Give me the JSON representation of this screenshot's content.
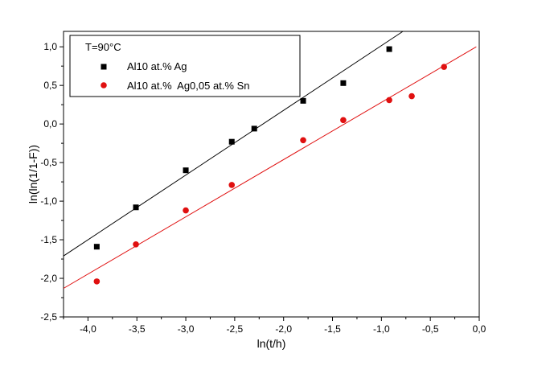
{
  "chart_data": {
    "type": "scatter",
    "title": "",
    "xlabel": "ln(t/h)",
    "ylabel": "ln(ln(1/1-F))",
    "xlim": [
      -4.25,
      0.0
    ],
    "ylim": [
      -2.5,
      1.2
    ],
    "x_ticks": [
      -4.0,
      -3.5,
      -3.0,
      -2.5,
      -2.0,
      -1.5,
      -1.0,
      -0.5,
      0.0
    ],
    "x_tick_labels": [
      "-4,0",
      "-3,5",
      "-3,0",
      "-2,5",
      "-2,0",
      "-1,5",
      "-1,0",
      "-0,5",
      "0,0"
    ],
    "y_ticks": [
      -2.5,
      -2.0,
      -1.5,
      -1.0,
      -0.5,
      0.0,
      0.5,
      1.0
    ],
    "y_tick_labels": [
      "-2,5",
      "-2,0",
      "-1,5",
      "-1,0",
      "-0,5",
      "0,0",
      "0,5",
      "1,0"
    ],
    "legend_title": "T=90°C",
    "legend_position": "top-left",
    "series": [
      {
        "name": "Al10 at.% Ag",
        "marker": "square",
        "color": "#000000",
        "points": [
          {
            "x": -3.91,
            "y": -1.59
          },
          {
            "x": -3.51,
            "y": -1.08
          },
          {
            "x": -3.0,
            "y": -0.6
          },
          {
            "x": -2.53,
            "y": -0.23
          },
          {
            "x": -2.3,
            "y": -0.06
          },
          {
            "x": -1.8,
            "y": 0.3
          },
          {
            "x": -1.39,
            "y": 0.53
          },
          {
            "x": -0.92,
            "y": 0.97
          }
        ],
        "fit_line": {
          "x_start": -4.25,
          "y_start": -1.71,
          "x_end": -0.78,
          "y_end": 1.2
        }
      },
      {
        "name": "Al10 at.%  Ag0,05 at.% Sn",
        "marker": "circle",
        "color": "#e01010",
        "points": [
          {
            "x": -3.91,
            "y": -2.04
          },
          {
            "x": -3.51,
            "y": -1.56
          },
          {
            "x": -3.0,
            "y": -1.12
          },
          {
            "x": -2.53,
            "y": -0.79
          },
          {
            "x": -1.8,
            "y": -0.21
          },
          {
            "x": -1.39,
            "y": 0.05
          },
          {
            "x": -0.92,
            "y": 0.31
          },
          {
            "x": -0.69,
            "y": 0.36
          },
          {
            "x": -0.36,
            "y": 0.74
          }
        ],
        "fit_line": {
          "x_start": -4.25,
          "y_start": -2.13,
          "x_end": -0.03,
          "y_end": 1.0
        }
      }
    ]
  }
}
